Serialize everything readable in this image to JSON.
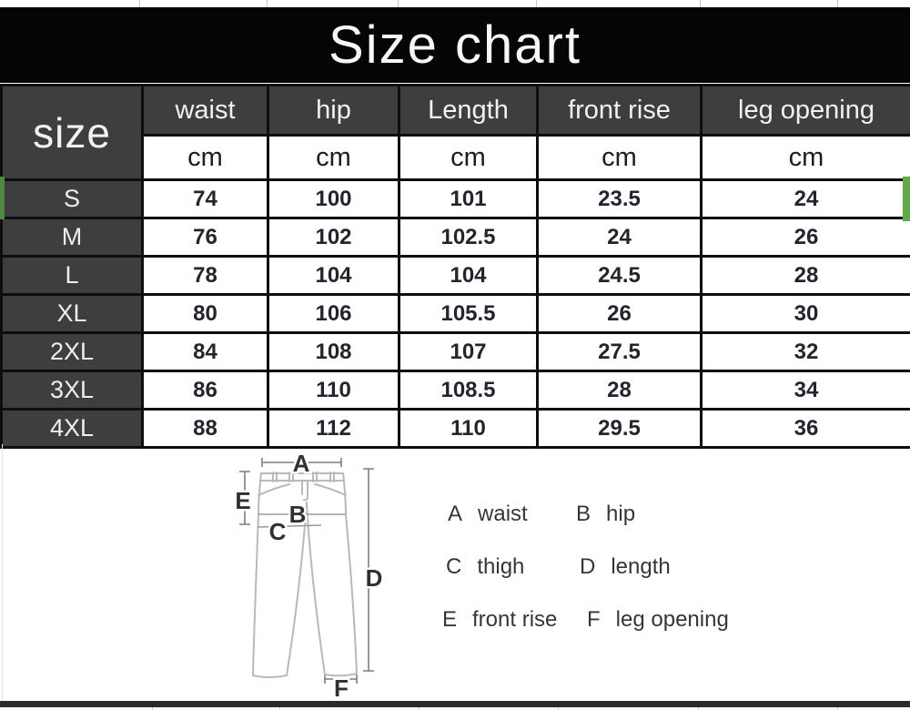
{
  "title": "Size chart",
  "table": {
    "corner_label": "size",
    "columns": [
      "waist",
      "hip",
      "Length",
      "front rise",
      "leg opening"
    ],
    "unit_row": [
      "cm",
      "cm",
      "cm",
      "cm",
      "cm"
    ],
    "rows": [
      {
        "size": "S",
        "values": [
          "74",
          "100",
          "101",
          "23.5",
          "24"
        ],
        "selected": true
      },
      {
        "size": "M",
        "values": [
          "76",
          "102",
          "102.5",
          "24",
          "26"
        ],
        "selected": false
      },
      {
        "size": "L",
        "values": [
          "78",
          "104",
          "104",
          "24.5",
          "28"
        ],
        "selected": false
      },
      {
        "size": "XL",
        "values": [
          "80",
          "106",
          "105.5",
          "26",
          "30"
        ],
        "selected": false
      },
      {
        "size": "2XL",
        "values": [
          "84",
          "108",
          "107",
          "27.5",
          "32"
        ],
        "selected": false
      },
      {
        "size": "3XL",
        "values": [
          "86",
          "110",
          "108.5",
          "28",
          "34"
        ],
        "selected": false
      },
      {
        "size": "4XL",
        "values": [
          "88",
          "112",
          "110",
          "29.5",
          "36"
        ],
        "selected": false
      }
    ]
  },
  "chart_data": {
    "type": "table",
    "title": "Size chart",
    "unit": "cm",
    "columns": [
      "size",
      "waist",
      "hip",
      "Length",
      "front rise",
      "leg opening"
    ],
    "rows": [
      [
        "S",
        74,
        100,
        101,
        23.5,
        24
      ],
      [
        "M",
        76,
        102,
        102.5,
        24,
        26
      ],
      [
        "L",
        78,
        104,
        104,
        24.5,
        28
      ],
      [
        "XL",
        80,
        106,
        105.5,
        26,
        30
      ],
      [
        "2XL",
        84,
        108,
        107,
        27.5,
        32
      ],
      [
        "3XL",
        86,
        110,
        108.5,
        28,
        34
      ],
      [
        "4XL",
        88,
        112,
        110,
        29.5,
        36
      ]
    ],
    "selected_row": "S"
  },
  "diagram": {
    "labels": [
      "A",
      "B",
      "C",
      "D",
      "E",
      "F"
    ]
  },
  "legend": {
    "items": [
      {
        "letter": "A",
        "label": "waist"
      },
      {
        "letter": "B",
        "label": "hip"
      },
      {
        "letter": "C",
        "label": "thigh"
      },
      {
        "letter": "D",
        "label": "length"
      },
      {
        "letter": "E",
        "label": "front rise"
      },
      {
        "letter": "F",
        "label": "leg opening"
      }
    ]
  },
  "colors": {
    "banner_bg": "#050505",
    "header_bg": "#3e3e3e",
    "border": "#0e0e0e",
    "selection_green": "#62aa48",
    "number_text": "#24242e"
  }
}
